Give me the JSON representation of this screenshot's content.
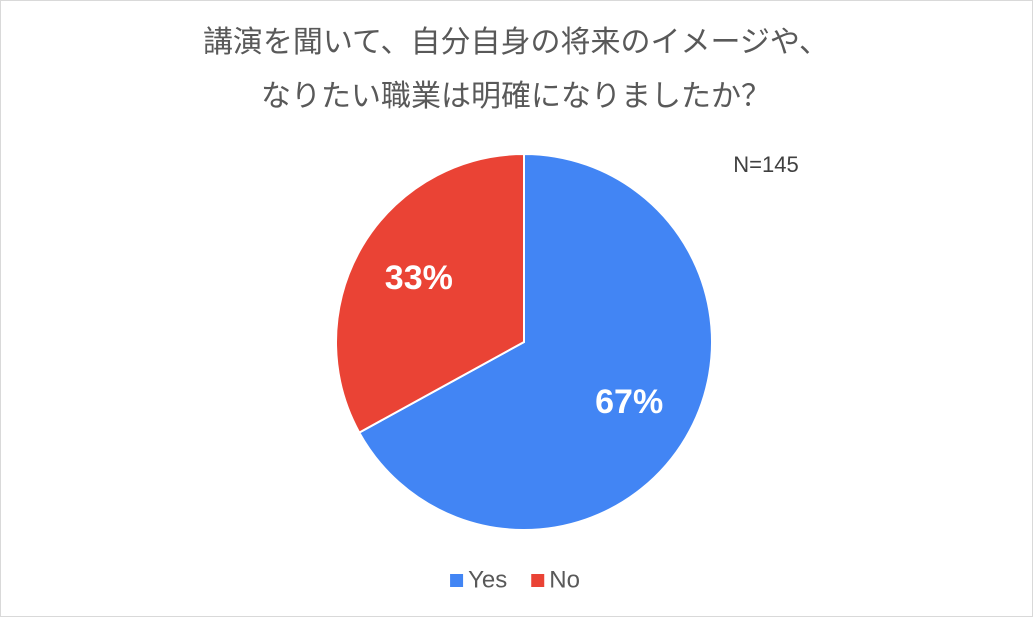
{
  "chart_data": {
    "type": "pie",
    "title": [
      "講演を聞いて、自分自身の将来のイメージや、",
      "なりたい職業は明確になりましたか？"
    ],
    "annotation": "N=145",
    "categories": [
      "Yes",
      "No"
    ],
    "values": [
      67,
      33
    ],
    "value_labels": [
      "67%",
      "33%"
    ],
    "colors": [
      "#4285f4",
      "#ea4335"
    ],
    "legend": "bottom"
  }
}
